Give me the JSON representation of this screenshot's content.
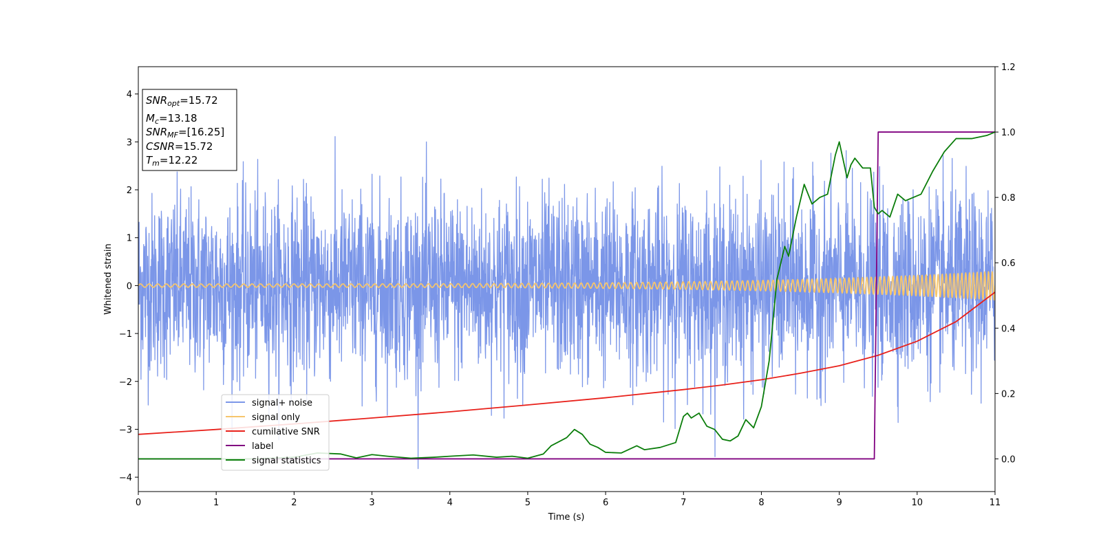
{
  "chart_data": {
    "type": "line",
    "xlabel": "Time (s)",
    "ylabel": "Whitened strain",
    "xlim": [
      0,
      11
    ],
    "ylim": [
      -4.3,
      4.57
    ],
    "y2lim": [
      -0.1,
      1.2
    ],
    "x_ticks": [
      "0",
      "1",
      "2",
      "3",
      "4",
      "5",
      "6",
      "7",
      "8",
      "9",
      "10",
      "11"
    ],
    "y_ticks": [
      "−4",
      "−3",
      "−2",
      "−1",
      "0",
      "1",
      "2",
      "3",
      "4"
    ],
    "y2_ticks": [
      "0.0",
      "0.2",
      "0.4",
      "0.6",
      "0.8",
      "1.0",
      "1.2"
    ],
    "grid": false,
    "legend_position": "lower-left",
    "annotation": {
      "lines": [
        {
          "main": "SNR",
          "sub": "opt",
          "rest": "=15.72"
        },
        {
          "main": "M",
          "sub": "c",
          "rest": "=13.18"
        },
        {
          "main": "SNR",
          "sub": "MF",
          "rest": "=[16.25]"
        },
        {
          "main": "CSNR",
          "sub": "",
          "rest": "=15.72"
        },
        {
          "main": "T",
          "sub": "m",
          "rest": "=12.22"
        }
      ]
    },
    "series": [
      {
        "name": "signal+ noise",
        "color": "#7b96e8",
        "axis": "left",
        "kind": "noise",
        "std": 0.95,
        "min": -3.88,
        "max": 3.28,
        "x_range": [
          0,
          11
        ]
      },
      {
        "name": "signal only",
        "color": "#f6c56c",
        "axis": "left",
        "kind": "chirp",
        "amplitude_start": 0.035,
        "amplitude_end": 0.3,
        "x_range": [
          0,
          11
        ]
      },
      {
        "name": "cumilative SNR",
        "color": "#e8201a",
        "axis": "right",
        "x": [
          0,
          1,
          2,
          3,
          4,
          5,
          6,
          7,
          7.5,
          8,
          8.5,
          9,
          9.5,
          10,
          10.5,
          11
        ],
        "y": [
          0.075,
          0.09,
          0.107,
          0.125,
          0.144,
          0.165,
          0.187,
          0.212,
          0.226,
          0.242,
          0.262,
          0.285,
          0.317,
          0.36,
          0.42,
          0.51
        ]
      },
      {
        "name": "label",
        "color": "#800080",
        "axis": "right",
        "x": [
          0,
          9.45,
          9.5,
          11
        ],
        "y": [
          0.0,
          0.0,
          1.0,
          1.0
        ]
      },
      {
        "name": "signal statistics",
        "color": "#0a7d0a",
        "axis": "right",
        "x": [
          0,
          0.5,
          1,
          1.5,
          2,
          2.3,
          2.6,
          2.8,
          3.0,
          3.2,
          3.5,
          3.8,
          4.0,
          4.3,
          4.6,
          4.8,
          5.0,
          5.2,
          5.3,
          5.5,
          5.6,
          5.7,
          5.8,
          5.9,
          6.0,
          6.2,
          6.4,
          6.5,
          6.7,
          6.9,
          7.0,
          7.05,
          7.1,
          7.2,
          7.3,
          7.4,
          7.5,
          7.6,
          7.7,
          7.8,
          7.9,
          8.0,
          8.1,
          8.2,
          8.3,
          8.35,
          8.45,
          8.55,
          8.65,
          8.75,
          8.85,
          8.95,
          9.0,
          9.1,
          9.15,
          9.2,
          9.3,
          9.4,
          9.45,
          9.5,
          9.55,
          9.65,
          9.75,
          9.85,
          9.95,
          10.05,
          10.2,
          10.35,
          10.5,
          10.7,
          10.9,
          11.0
        ],
        "y": [
          0.0,
          0.0,
          0.0,
          0.0,
          0.005,
          0.018,
          0.015,
          0.003,
          0.013,
          0.008,
          0.002,
          0.005,
          0.008,
          0.012,
          0.005,
          0.008,
          0.002,
          0.015,
          0.04,
          0.065,
          0.09,
          0.075,
          0.045,
          0.035,
          0.02,
          0.018,
          0.04,
          0.028,
          0.035,
          0.05,
          0.13,
          0.14,
          0.125,
          0.14,
          0.1,
          0.09,
          0.06,
          0.055,
          0.07,
          0.12,
          0.095,
          0.16,
          0.3,
          0.55,
          0.65,
          0.62,
          0.74,
          0.84,
          0.78,
          0.8,
          0.81,
          0.93,
          0.97,
          0.86,
          0.9,
          0.92,
          0.89,
          0.89,
          0.77,
          0.75,
          0.76,
          0.74,
          0.81,
          0.79,
          0.8,
          0.81,
          0.88,
          0.94,
          0.98,
          0.98,
          0.99,
          1.0
        ]
      }
    ]
  }
}
